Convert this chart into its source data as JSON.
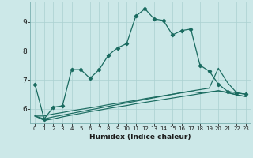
{
  "xlabel": "Humidex (Indice chaleur)",
  "bg_color": "#cce8e8",
  "line_color": "#1a6b60",
  "grid_color": "#aad0d0",
  "xlim": [
    -0.5,
    23.5
  ],
  "ylim": [
    5.5,
    9.7
  ],
  "xticks": [
    0,
    1,
    2,
    3,
    4,
    5,
    6,
    7,
    8,
    9,
    10,
    11,
    12,
    13,
    14,
    15,
    16,
    17,
    18,
    19,
    20,
    21,
    22,
    23
  ],
  "yticks": [
    6,
    7,
    8,
    9
  ],
  "lines": [
    {
      "x": [
        0,
        1,
        2,
        3,
        4,
        5,
        6,
        7,
        8,
        9,
        10,
        11,
        12,
        13,
        14,
        15,
        16,
        17,
        18,
        19,
        20,
        21,
        22,
        23
      ],
      "y": [
        6.85,
        5.65,
        6.05,
        6.1,
        7.35,
        7.35,
        7.05,
        7.35,
        7.85,
        8.1,
        8.25,
        9.2,
        9.45,
        9.1,
        9.05,
        8.55,
        8.7,
        8.75,
        7.5,
        7.3,
        6.85,
        6.6,
        6.55,
        6.5
      ],
      "marker": true
    },
    {
      "x": [
        0,
        1,
        2,
        3,
        4,
        5,
        6,
        7,
        8,
        9,
        10,
        11,
        12,
        13,
        14,
        15,
        16,
        17,
        18,
        19,
        20,
        21,
        22,
        23
      ],
      "y": [
        5.75,
        5.75,
        5.82,
        5.87,
        5.93,
        5.98,
        6.03,
        6.08,
        6.14,
        6.19,
        6.24,
        6.29,
        6.35,
        6.4,
        6.45,
        6.5,
        6.56,
        6.61,
        6.66,
        6.71,
        7.4,
        6.9,
        6.55,
        6.5
      ],
      "marker": false
    },
    {
      "x": [
        0,
        1,
        2,
        3,
        4,
        5,
        6,
        7,
        8,
        9,
        10,
        11,
        12,
        13,
        14,
        15,
        16,
        17,
        18,
        19,
        20,
        21,
        22,
        23
      ],
      "y": [
        5.75,
        5.65,
        5.72,
        5.78,
        5.84,
        5.9,
        5.96,
        6.02,
        6.08,
        6.14,
        6.2,
        6.26,
        6.32,
        6.38,
        6.44,
        6.5,
        6.55,
        6.6,
        6.55,
        6.58,
        6.62,
        6.55,
        6.48,
        6.42
      ],
      "marker": false
    },
    {
      "x": [
        0,
        1,
        2,
        3,
        4,
        5,
        6,
        7,
        8,
        9,
        10,
        11,
        12,
        13,
        14,
        15,
        16,
        17,
        18,
        19,
        20,
        21,
        22,
        23
      ],
      "y": [
        5.75,
        5.6,
        5.65,
        5.72,
        5.78,
        5.84,
        5.9,
        5.95,
        6.01,
        6.06,
        6.11,
        6.17,
        6.22,
        6.27,
        6.32,
        6.37,
        6.42,
        6.47,
        6.52,
        6.57,
        6.62,
        6.57,
        6.48,
        6.42
      ],
      "marker": false
    }
  ]
}
